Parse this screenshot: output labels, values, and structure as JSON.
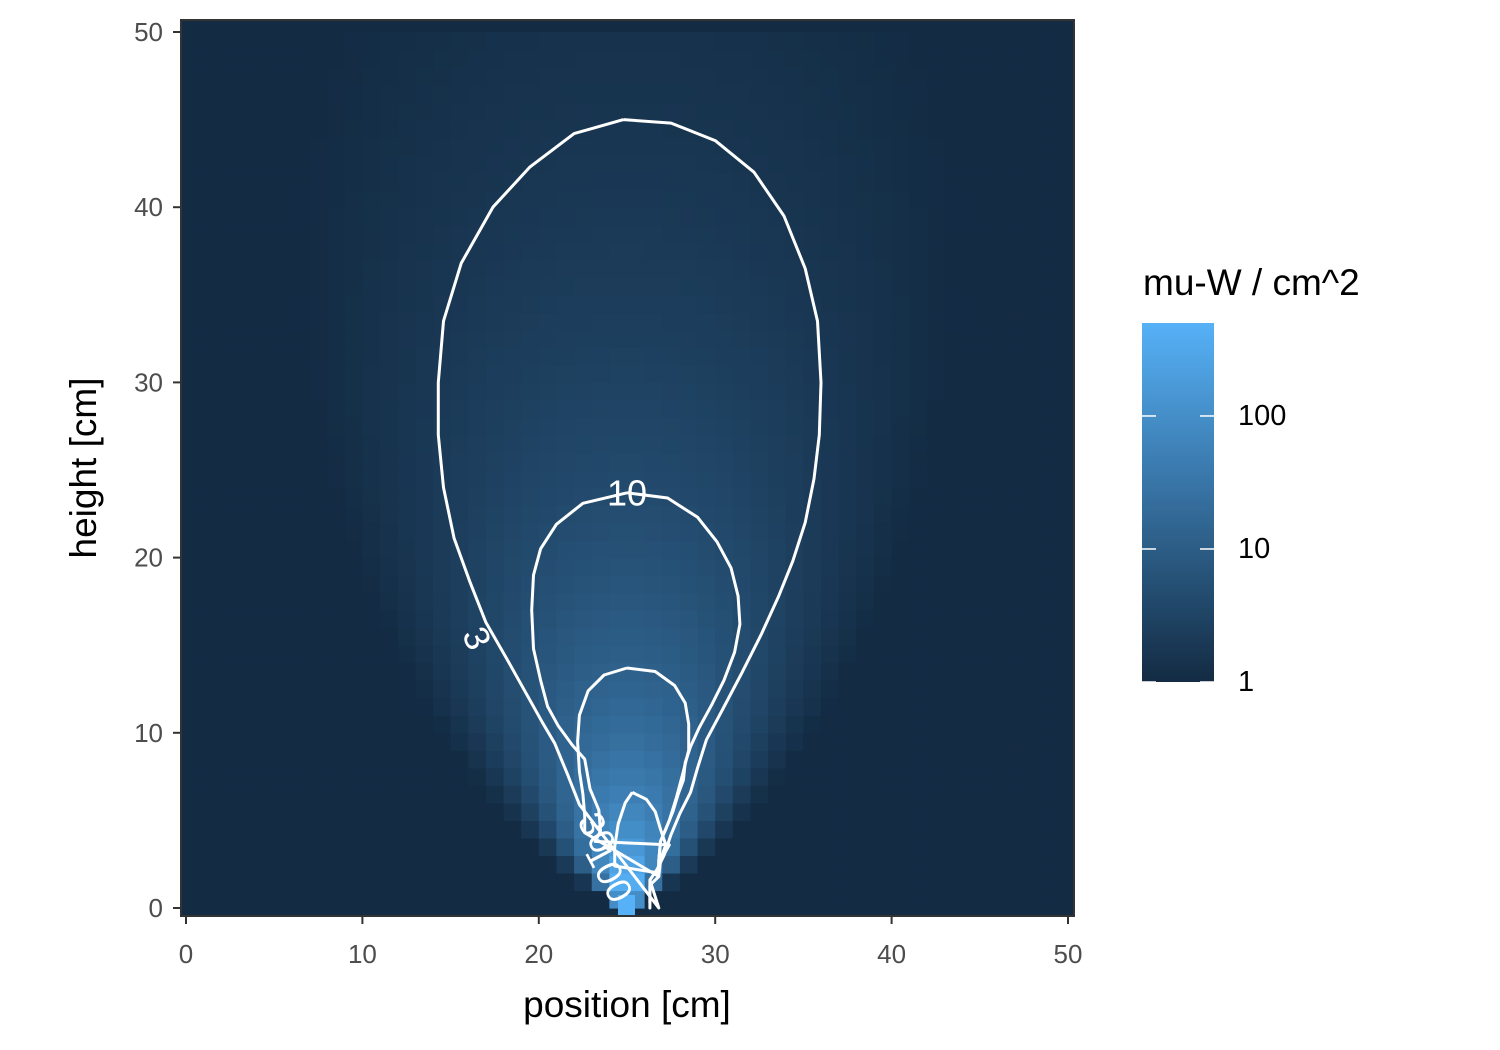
{
  "chart_data": {
    "type": "heatmap",
    "title": "",
    "xlabel": "position [cm]",
    "ylabel": "height [cm]",
    "xlim": [
      0,
      50
    ],
    "ylim": [
      0,
      50
    ],
    "x_ticks": [
      "0",
      "10",
      "20",
      "30",
      "40",
      "50"
    ],
    "y_ticks": [
      "0",
      "10",
      "20",
      "30",
      "40",
      "50"
    ],
    "x_tick_values": [
      0,
      10,
      20,
      30,
      40,
      50
    ],
    "y_tick_values": [
      0,
      10,
      20,
      30,
      40,
      50
    ],
    "source": {
      "x": 25,
      "y": 0
    },
    "fill_scale": "log10",
    "legend": {
      "title": "mu-W / cm^2",
      "position": "right",
      "labels": [
        "100",
        "10",
        "1"
      ],
      "values": [
        100,
        10,
        1
      ],
      "range": [
        1,
        500
      ],
      "color_low": "#132B43",
      "color_high": "#56B1F7"
    },
    "contours": [
      {
        "level": 3,
        "label": "3",
        "points": [
          [
            24.8,
            45
          ],
          [
            27.5,
            44.8
          ],
          [
            30,
            43.8
          ],
          [
            32.2,
            42
          ],
          [
            33.9,
            39.5
          ],
          [
            35.1,
            36.5
          ],
          [
            35.8,
            33.5
          ],
          [
            36,
            30
          ],
          [
            35.9,
            27
          ],
          [
            35.6,
            24.5
          ],
          [
            35.1,
            22
          ],
          [
            34.4,
            19.8
          ],
          [
            33.6,
            17.8
          ],
          [
            32.6,
            15.6
          ],
          [
            31.5,
            13.4
          ],
          [
            30.4,
            11.3
          ],
          [
            29.5,
            9.6
          ],
          [
            29,
            8
          ],
          [
            28.6,
            6.6
          ],
          [
            28,
            5.4
          ],
          [
            27.5,
            4.2
          ],
          [
            27.1,
            3
          ],
          [
            26.7,
            2.2
          ],
          [
            26.3,
            1.6
          ],
          [
            26.3,
            0.3
          ],
          [
            26.3,
            1.6
          ],
          [
            26.3,
            1.6
          ],
          [
            26.8,
            0
          ],
          [
            22.3,
            5.9
          ],
          [
            21.6,
            7.7
          ],
          [
            20.9,
            9.4
          ],
          [
            20.2,
            10.6
          ],
          [
            19.2,
            12.4
          ],
          [
            18.2,
            14.2
          ],
          [
            17,
            16.3
          ],
          [
            16.1,
            18.6
          ],
          [
            15.2,
            21.1
          ],
          [
            14.6,
            24
          ],
          [
            14.3,
            27
          ],
          [
            14.3,
            30
          ],
          [
            14.6,
            33.5
          ],
          [
            15.6,
            36.8
          ],
          [
            17.4,
            40
          ],
          [
            19.5,
            42.3
          ],
          [
            22,
            44.2
          ],
          [
            24.8,
            45
          ]
        ]
      },
      {
        "level": 10,
        "label": "10",
        "points": [
          [
            25,
            23.7
          ],
          [
            27.3,
            23.4
          ],
          [
            29,
            22.3
          ],
          [
            30.1,
            20.9
          ],
          [
            30.9,
            19.4
          ],
          [
            31.3,
            17.8
          ],
          [
            31.4,
            16.2
          ],
          [
            31.1,
            14.6
          ],
          [
            30.5,
            13
          ],
          [
            29.8,
            11.6
          ],
          [
            29.1,
            10.3
          ],
          [
            28.6,
            9.2
          ],
          [
            28.3,
            8.3
          ],
          [
            28.2,
            7.3
          ],
          [
            27.9,
            6.5
          ],
          [
            27.6,
            5.5
          ],
          [
            27.2,
            4.5
          ],
          [
            26.9,
            3.8
          ],
          [
            26.8,
            2.7
          ],
          [
            26.8,
            1.8
          ],
          [
            26.3,
            1.3
          ],
          [
            26.3,
            0
          ],
          [
            26.3,
            1.3
          ],
          [
            26.8,
            1.8
          ],
          [
            26.9,
            2.7
          ],
          [
            27.4,
            3.6
          ],
          [
            23.2,
            3.8
          ],
          [
            23.5,
            4.4
          ],
          [
            23.4,
            5.6
          ],
          [
            22.9,
            6.8
          ],
          [
            22.6,
            8.5
          ],
          [
            21.9,
            9.3
          ],
          [
            21.1,
            10.4
          ],
          [
            20.5,
            11.5
          ],
          [
            20.1,
            13
          ],
          [
            19.7,
            14.8
          ],
          [
            19.6,
            17
          ],
          [
            19.7,
            19
          ],
          [
            20.1,
            20.5
          ],
          [
            21,
            21.9
          ],
          [
            22.5,
            23.1
          ],
          [
            25,
            23.7
          ]
        ]
      },
      {
        "level": 30,
        "label": "30",
        "points": [
          [
            25,
            13.7
          ],
          [
            26.6,
            13.5
          ],
          [
            27.7,
            12.7
          ],
          [
            28.3,
            11.7
          ],
          [
            28.5,
            10.5
          ],
          [
            28.5,
            9
          ],
          [
            28.2,
            7.8
          ],
          [
            27.8,
            6.3
          ],
          [
            27.4,
            5
          ],
          [
            26.9,
            3.8
          ],
          [
            26.8,
            2.7
          ],
          [
            26.8,
            1.8
          ],
          [
            22.6,
            4.3
          ],
          [
            22.6,
            5.3
          ],
          [
            22.5,
            6.5
          ],
          [
            22.3,
            7.8
          ],
          [
            22.2,
            9.5
          ],
          [
            22.3,
            11
          ],
          [
            22.8,
            12.4
          ],
          [
            23.7,
            13.3
          ],
          [
            25,
            13.7
          ]
        ]
      },
      {
        "level": 100,
        "label": "100",
        "points": [
          [
            25.3,
            6.6
          ],
          [
            26.1,
            6.2
          ],
          [
            26.6,
            5.5
          ],
          [
            26.9,
            4.5
          ],
          [
            27.2,
            3.6
          ],
          [
            26.8,
            2.5
          ],
          [
            26.8,
            2
          ],
          [
            24.3,
            2.4
          ],
          [
            24.3,
            3.5
          ],
          [
            24.5,
            4.8
          ],
          [
            24.9,
            6
          ],
          [
            25.3,
            6.6
          ]
        ]
      }
    ],
    "contour_labels": [
      {
        "text": "10",
        "x": 25,
        "y": 23.7,
        "angle": 0
      },
      {
        "text": "3",
        "x": 16.5,
        "y": 15.4,
        "angle": 65
      },
      {
        "text": "30",
        "x": 23.3,
        "y": 4.3,
        "angle": 62
      },
      {
        "text": "100",
        "x": 24,
        "y": 2,
        "angle": 62
      }
    ]
  }
}
